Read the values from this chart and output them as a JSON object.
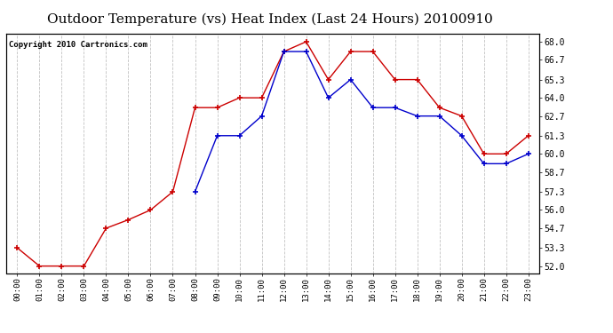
{
  "title": "Outdoor Temperature (vs) Heat Index (Last 24 Hours) 20100910",
  "copyright": "Copyright 2010 Cartronics.com",
  "x_labels": [
    "00:00",
    "01:00",
    "02:00",
    "03:00",
    "04:00",
    "05:00",
    "06:00",
    "07:00",
    "08:00",
    "09:00",
    "10:00",
    "11:00",
    "12:00",
    "13:00",
    "14:00",
    "15:00",
    "16:00",
    "17:00",
    "18:00",
    "19:00",
    "20:00",
    "21:00",
    "22:00",
    "23:00"
  ],
  "red_values": [
    53.3,
    52.0,
    52.0,
    52.0,
    54.7,
    55.3,
    56.0,
    57.3,
    63.3,
    63.3,
    64.0,
    64.0,
    67.3,
    68.0,
    65.3,
    67.3,
    67.3,
    65.3,
    65.3,
    63.3,
    62.7,
    60.0,
    60.0,
    61.3
  ],
  "blue_values": [
    null,
    null,
    null,
    null,
    null,
    null,
    null,
    null,
    57.3,
    61.3,
    61.3,
    62.7,
    67.3,
    67.3,
    64.0,
    65.3,
    63.3,
    63.3,
    62.7,
    62.7,
    61.3,
    59.3,
    59.3,
    60.0
  ],
  "y_ticks": [
    52.0,
    53.3,
    54.7,
    56.0,
    57.3,
    58.7,
    60.0,
    61.3,
    62.7,
    64.0,
    65.3,
    66.7,
    68.0
  ],
  "ylim": [
    51.5,
    68.6
  ],
  "background_color": "#ffffff",
  "plot_bg_color": "#ffffff",
  "grid_color": "#bbbbbb",
  "red_color": "#cc0000",
  "blue_color": "#0000cc",
  "title_fontsize": 11,
  "copyright_fontsize": 6.5
}
